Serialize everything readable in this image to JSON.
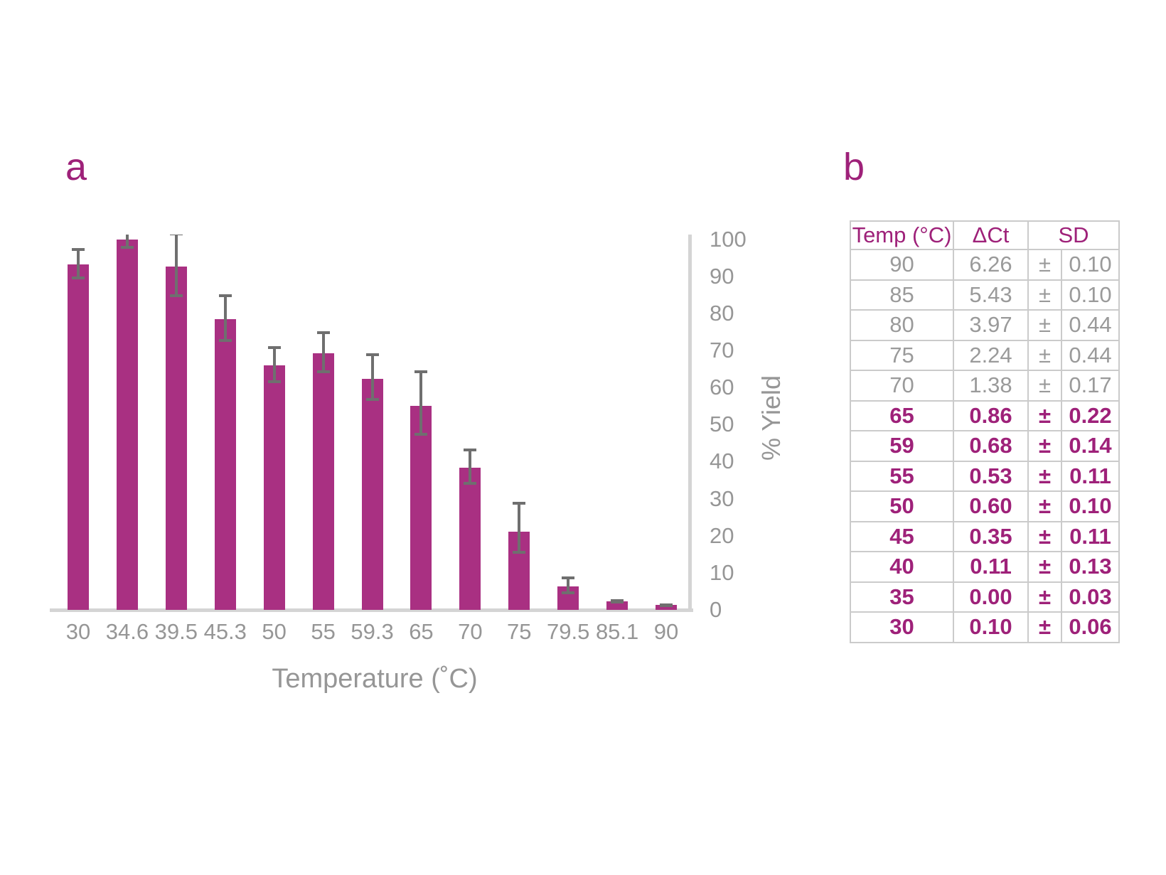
{
  "panel_a": {
    "label": "a"
  },
  "panel_b": {
    "label": "b",
    "table": {
      "headers": [
        "Temp (°C)",
        "ΔCt",
        "SD"
      ],
      "rows": [
        {
          "temp": "90",
          "dct": "6.26",
          "pm": "±",
          "sd": "0.10",
          "style": "gray"
        },
        {
          "temp": "85",
          "dct": "5.43",
          "pm": "±",
          "sd": "0.10",
          "style": "gray"
        },
        {
          "temp": "80",
          "dct": "3.97",
          "pm": "±",
          "sd": "0.44",
          "style": "gray"
        },
        {
          "temp": "75",
          "dct": "2.24",
          "pm": "±",
          "sd": "0.44",
          "style": "gray"
        },
        {
          "temp": "70",
          "dct": "1.38",
          "pm": "±",
          "sd": "0.17",
          "style": "gray"
        },
        {
          "temp": "65",
          "dct": "0.86",
          "pm": "±",
          "sd": "0.22",
          "style": "magenta"
        },
        {
          "temp": "59",
          "dct": "0.68",
          "pm": "±",
          "sd": "0.14",
          "style": "magenta"
        },
        {
          "temp": "55",
          "dct": "0.53",
          "pm": "±",
          "sd": "0.11",
          "style": "magenta"
        },
        {
          "temp": "50",
          "dct": "0.60",
          "pm": "±",
          "sd": "0.10",
          "style": "magenta"
        },
        {
          "temp": "45",
          "dct": "0.35",
          "pm": "±",
          "sd": "0.11",
          "style": "magenta"
        },
        {
          "temp": "40",
          "dct": "0.11",
          "pm": "±",
          "sd": "0.13",
          "style": "magenta"
        },
        {
          "temp": "35",
          "dct": "0.00",
          "pm": "±",
          "sd": "0.03",
          "style": "magenta"
        },
        {
          "temp": "30",
          "dct": "0.10",
          "pm": "±",
          "sd": "0.06",
          "style": "magenta"
        }
      ]
    }
  },
  "chart_data": {
    "type": "bar",
    "title": "",
    "xlabel": "Temperature (˚C)",
    "ylabel": "% Yield",
    "categories": [
      "30",
      "34.6",
      "39.5",
      "45.3",
      "50",
      "55",
      "59.3",
      "65",
      "70",
      "75",
      "79.5",
      "85.1",
      "90"
    ],
    "values": [
      93.3,
      100.0,
      92.7,
      78.4,
      66.0,
      69.3,
      62.4,
      55.1,
      38.4,
      21.2,
      6.4,
      2.3,
      1.3
    ],
    "error_low": [
      89.5,
      97.9,
      84.7,
      72.7,
      61.6,
      64.2,
      56.7,
      47.3,
      34.2,
      15.6,
      4.7,
      2.2,
      1.2
    ],
    "error_high": [
      97.3,
      102.1,
      101.4,
      84.7,
      70.7,
      74.8,
      68.8,
      64.2,
      43.2,
      28.7,
      8.7,
      2.5,
      1.4
    ],
    "ylim": [
      0,
      100
    ],
    "yticks": [
      0,
      10,
      20,
      30,
      40,
      50,
      60,
      70,
      80,
      90,
      100
    ],
    "grid": false,
    "legend": "none",
    "y_axis_side": "right",
    "error_bars": true
  },
  "colors": {
    "bar": "#A93082",
    "magenta_text": "#9E2179",
    "gray_text": "#9A9A9A",
    "tick_text": "#969696",
    "error_bar": "#6F6F6F",
    "axis_line": "#D4D4D4",
    "table_border": "#CBCBCB",
    "background": "#FFFFFF"
  }
}
